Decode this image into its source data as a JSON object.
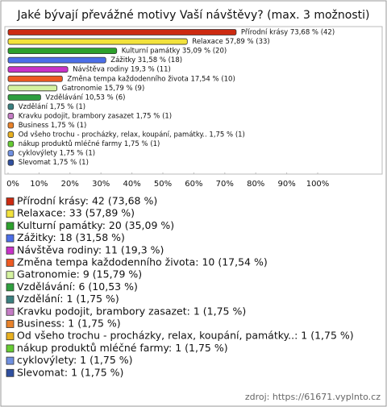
{
  "chart_data": {
    "type": "bar",
    "orientation": "horizontal",
    "title": "Jaké bývají převážné motivy Vaší návštěvy? (max. 3 možnosti)",
    "categories": [
      "Přírodní krásy",
      "Relaxace",
      "Kulturní památky",
      "Zážitky",
      "Návštěva rodiny",
      "Změna tempa každodenního života",
      "Gatronomie",
      "Vzdělávání",
      "Vzdělání",
      "Kravku podojit, brambory zasazet",
      "Business",
      "Od všeho trochu - procházky, relax, koupání, památky..",
      "nákup produktů mléčné farmy",
      "cyklovýlety",
      "Slevomat"
    ],
    "values": [
      73.68,
      57.89,
      35.09,
      31.58,
      19.3,
      17.54,
      15.79,
      10.53,
      1.75,
      1.75,
      1.75,
      1.75,
      1.75,
      1.75,
      1.75
    ],
    "value_labels": [
      "Přírodní krásy 73,68 % (42)",
      "Relaxace 57,89 % (33)",
      "Kulturní památky 35,09 % (20)",
      "Zážitky 31,58 % (18)",
      "Návštěva rodiny 19,3 % (11)",
      "Změna tempa každodenního života 17,54 % (10)",
      "Gatronomie 15,79 % (9)",
      "Vzdělávání 10,53 % (6)",
      "Vzdělání 1,75 % (1)",
      "Kravku podojit, brambory zasazet 1,75 % (1)",
      "Business 1,75 % (1)",
      "Od všeho trochu - procházky, relax, koupání, památky.. 1,75 % (1)",
      "nákup produktů mléčné farmy 1,75 % (1)",
      "cyklovýlety 1,75 % (1)",
      "Slevomat 1,75 % (1)"
    ],
    "legend_labels": [
      "Přírodní krásy: 42 (73,68 %)",
      "Relaxace: 33 (57,89 %)",
      "Kulturní památky: 20 (35,09 %)",
      "Zážitky: 18 (31,58 %)",
      "Návštěva rodiny: 11 (19,3 %)",
      "Změna tempa každodenního života: 10 (17,54 %)",
      "Gatronomie: 9 (15,79 %)",
      "Vzdělávání: 6 (10,53 %)",
      "Vzdělání: 1 (1,75 %)",
      "Kravku podojit, brambory zasazet: 1 (1,75 %)",
      "Business: 1 (1,75 %)",
      "Od všeho trochu - procházky, relax, koupání, památky..: 1 (1,75 %)",
      "nákup produktů mléčné farmy: 1 (1,75 %)",
      "cyklovýlety: 1 (1,75 %)",
      "Slevomat: 1 (1,75 %)"
    ],
    "colors": [
      "#cc2a10",
      "#f2e23c",
      "#2ca02c",
      "#4b6ee8",
      "#c832c8",
      "#ee5a22",
      "#d4f2a0",
      "#2e9e3e",
      "#3a8080",
      "#c47cc4",
      "#e8822a",
      "#e8b020",
      "#66cc33",
      "#7090e0",
      "#3050a0"
    ],
    "xlim": [
      0,
      100
    ],
    "xticks": [
      {
        "value": 0,
        "label": "0%"
      },
      {
        "value": 10,
        "label": "10%"
      },
      {
        "value": 20,
        "label": "20%"
      },
      {
        "value": 30,
        "label": "30%"
      },
      {
        "value": 40,
        "label": "40%"
      },
      {
        "value": 50,
        "label": "50%"
      },
      {
        "value": 60,
        "label": "60%"
      },
      {
        "value": 70,
        "label": "70%"
      },
      {
        "value": 80,
        "label": "80%"
      },
      {
        "value": 90,
        "label": "90%"
      },
      {
        "value": 100,
        "label": "100%"
      }
    ],
    "source": "zdroj: https://61671.vyplnto.cz"
  }
}
